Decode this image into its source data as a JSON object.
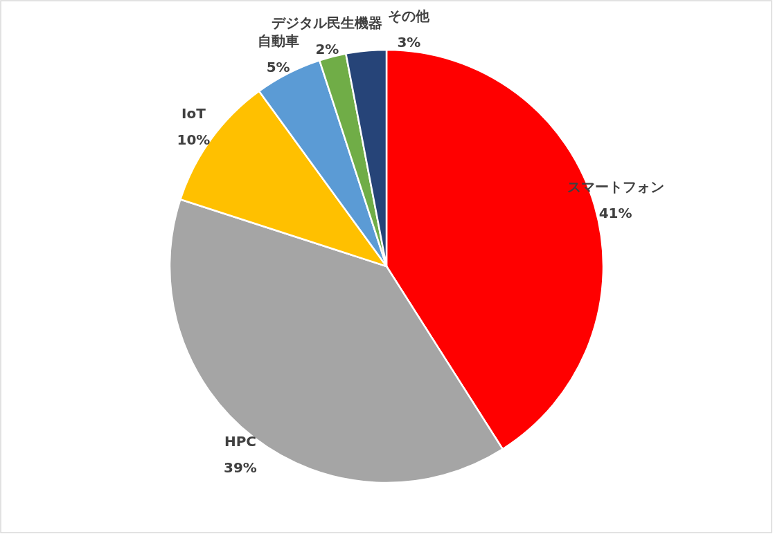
{
  "chart_data": {
    "type": "pie",
    "categories": [
      "スマートフォン",
      "HPC",
      "IoT",
      "自動車",
      "デジタル民生機器",
      "その他"
    ],
    "values": [
      41,
      39,
      10,
      5,
      2,
      3
    ],
    "colors": [
      "#ff0000",
      "#a5a5a5",
      "#ffc000",
      "#5b9bd5",
      "#70ad47",
      "#264478"
    ],
    "value_labels": [
      "41%",
      "39%",
      "10%",
      "5%",
      "2%",
      "3%"
    ]
  }
}
